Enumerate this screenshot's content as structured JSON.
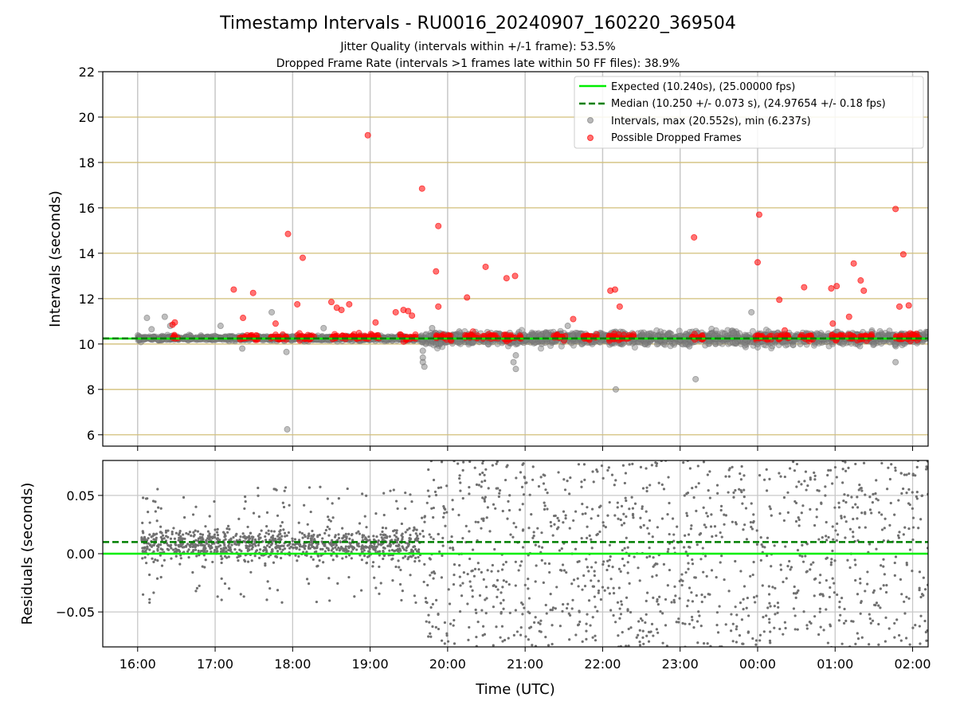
{
  "chart_data": [
    {
      "type": "scatter",
      "title": "Timestamp Intervals - RU0016_20240907_160220_369504",
      "subtitle_lines": [
        "Jitter Quality (intervals within +/-1 frame): 53.5%",
        "Dropped Frame Rate (intervals >1 frames late within 50 FF files): 38.9%"
      ],
      "ylabel": "Intervals (seconds)",
      "xlabel": "",
      "x_range_hours": [
        15.55,
        26.2
      ],
      "ylim": [
        5.5,
        22
      ],
      "yticks": [
        6,
        8,
        10,
        12,
        14,
        16,
        18,
        20,
        22
      ],
      "ytick_labels": [
        "6",
        "8",
        "10",
        "12",
        "14",
        "16",
        "18",
        "20",
        "22"
      ],
      "xticks_hours": [
        16,
        17,
        18,
        19,
        20,
        21,
        22,
        23,
        24,
        25,
        26
      ],
      "xtick_labels": [
        "16:00",
        "17:00",
        "18:00",
        "19:00",
        "20:00",
        "21:00",
        "22:00",
        "23:00",
        "00:00",
        "01:00",
        "02:00"
      ],
      "grid": "on",
      "legend_position": "top-right",
      "legend": [
        {
          "label": "Expected (10.240s), (25.00000 fps)",
          "style": "solid-line",
          "color": "#00ee00"
        },
        {
          "label": "Median (10.250 +/- 0.073 s), (24.97654 +/- 0.18 fps)",
          "style": "dashed-line",
          "color": "#007f00"
        },
        {
          "label": "Intervals, max (20.552s), min (6.237s)",
          "style": "marker",
          "color": "#808080"
        },
        {
          "label": "Possible Dropped Frames",
          "style": "marker",
          "color": "#ff0000"
        }
      ],
      "series": [
        {
          "name": "Expected (10.240s), (25.00000 fps)",
          "type": "hline",
          "y": 10.24,
          "color": "#00ee00"
        },
        {
          "name": "Median (10.250 +/- 0.073 s), (24.97654 +/- 0.18 fps)",
          "type": "hline",
          "y": 10.25,
          "color": "#007f00"
        },
        {
          "name": "Intervals, max (20.552s), min (6.237s)",
          "color": "#808080",
          "points": [
            [
              16.12,
              11.15
            ],
            [
              16.18,
              10.65
            ],
            [
              16.35,
              11.2
            ],
            [
              16.42,
              10.8
            ],
            [
              17.07,
              10.8
            ],
            [
              17.35,
              9.8
            ],
            [
              17.73,
              11.4
            ],
            [
              17.92,
              9.65
            ],
            [
              17.93,
              6.24
            ],
            [
              18.4,
              10.7
            ],
            [
              19.2,
              10.2
            ],
            [
              19.68,
              9.7
            ],
            [
              19.68,
              9.4
            ],
            [
              19.7,
              9.0
            ],
            [
              19.68,
              9.2
            ],
            [
              19.8,
              10.7
            ],
            [
              20.88,
              9.5
            ],
            [
              20.88,
              8.9
            ],
            [
              20.85,
              9.2
            ],
            [
              22.17,
              8.0
            ],
            [
              23.12,
              9.9
            ],
            [
              23.2,
              8.45
            ],
            [
              24.0,
              10.0
            ],
            [
              23.92,
              11.4
            ],
            [
              25.78,
              9.2
            ],
            [
              25.78,
              10.0
            ],
            [
              21.55,
              10.8
            ],
            [
              20.15,
              10.55
            ],
            [
              19.85,
              10.0
            ],
            [
              22.55,
              10.0
            ],
            [
              24.55,
              10.0
            ],
            [
              25.1,
              10.0
            ],
            [
              25.5,
              10.0
            ]
          ]
        },
        {
          "name": "Possible Dropped Frames",
          "color": "#ff0000",
          "points": [
            [
              16.45,
              10.85
            ],
            [
              16.48,
              10.95
            ],
            [
              17.24,
              12.4
            ],
            [
              17.36,
              11.15
            ],
            [
              17.49,
              12.25
            ],
            [
              17.78,
              10.9
            ],
            [
              17.94,
              14.85
            ],
            [
              18.06,
              11.75
            ],
            [
              18.13,
              13.8
            ],
            [
              18.5,
              11.85
            ],
            [
              18.57,
              11.6
            ],
            [
              18.63,
              11.5
            ],
            [
              18.73,
              11.75
            ],
            [
              18.97,
              19.2
            ],
            [
              19.07,
              10.95
            ],
            [
              19.33,
              11.4
            ],
            [
              19.43,
              11.5
            ],
            [
              19.49,
              11.45
            ],
            [
              19.54,
              11.25
            ],
            [
              19.67,
              16.85
            ],
            [
              19.85,
              13.2
            ],
            [
              19.88,
              15.2
            ],
            [
              19.88,
              11.65
            ],
            [
              20.25,
              12.05
            ],
            [
              20.49,
              13.4
            ],
            [
              20.76,
              12.9
            ],
            [
              20.87,
              13.0
            ],
            [
              21.62,
              11.1
            ],
            [
              22.1,
              12.35
            ],
            [
              22.16,
              12.4
            ],
            [
              22.22,
              11.65
            ],
            [
              23.18,
              14.7
            ],
            [
              24.02,
              15.7
            ],
            [
              24.0,
              13.6
            ],
            [
              24.28,
              11.95
            ],
            [
              24.35,
              10.6
            ],
            [
              24.6,
              12.5
            ],
            [
              24.95,
              12.45
            ],
            [
              24.97,
              10.9
            ],
            [
              25.02,
              12.55
            ],
            [
              25.18,
              11.2
            ],
            [
              25.24,
              13.55
            ],
            [
              25.33,
              12.8
            ],
            [
              25.37,
              12.35
            ],
            [
              25.78,
              15.95
            ],
            [
              25.83,
              11.65
            ],
            [
              25.88,
              13.95
            ],
            [
              25.95,
              11.7
            ],
            [
              26.05,
              10.45
            ]
          ]
        }
      ],
      "dense_bands": {
        "gray_bands": [
          [
            16.0,
            19.65,
            0.08
          ],
          [
            19.65,
            26.2,
            0.22
          ]
        ],
        "red_clusters": [
          [
            16.45,
            16.52
          ],
          [
            17.3,
            17.55
          ],
          [
            17.72,
            17.93
          ],
          [
            18.05,
            18.28
          ],
          [
            18.5,
            18.88
          ],
          [
            18.93,
            19.12
          ],
          [
            19.38,
            19.6
          ],
          [
            19.85,
            20.05
          ],
          [
            20.22,
            20.4
          ],
          [
            20.45,
            20.65
          ],
          [
            20.72,
            20.95
          ],
          [
            21.35,
            21.52
          ],
          [
            21.73,
            21.95
          ],
          [
            22.08,
            22.4
          ],
          [
            23.15,
            23.3
          ],
          [
            23.97,
            24.18
          ],
          [
            24.25,
            24.42
          ],
          [
            24.55,
            24.72
          ],
          [
            24.95,
            25.12
          ],
          [
            25.17,
            25.48
          ],
          [
            25.78,
            26.1
          ]
        ]
      }
    },
    {
      "type": "scatter",
      "title": "",
      "ylabel": "Residuals (seconds)",
      "xlabel": "Time (UTC)",
      "x_range_hours": [
        15.55,
        26.2
      ],
      "ylim": [
        -0.08,
        0.08
      ],
      "yticks": [
        -0.05,
        0.0,
        0.05
      ],
      "ytick_labels": [
        "−0.05",
        "0.00",
        "0.05"
      ],
      "xticks_hours": [
        16,
        17,
        18,
        19,
        20,
        21,
        22,
        23,
        24,
        25,
        26
      ],
      "xtick_labels": [
        "16:00",
        "17:00",
        "18:00",
        "19:00",
        "20:00",
        "21:00",
        "22:00",
        "23:00",
        "00:00",
        "01:00",
        "02:00"
      ],
      "grid": "on",
      "series": [
        {
          "name": "",
          "type": "hline",
          "y": 0.0,
          "color": "#00ee00"
        },
        {
          "name": "",
          "type": "hline",
          "y": 0.01,
          "color": "#007f00"
        },
        {
          "name": "",
          "type": "points",
          "color": "#808080",
          "distribution": [
            {
              "x": [
                16.05,
                19.65
              ],
              "y_center": 0.008,
              "y_spread": 0.012,
              "outlier_fraction": 0.15,
              "density_per_hour": 300
            },
            {
              "x": [
                19.65,
                26.2
              ],
              "y_center": 0.0,
              "y_spread": 0.08,
              "outlier_fraction": 1.0,
              "density_per_hour": 190
            }
          ]
        }
      ]
    }
  ]
}
